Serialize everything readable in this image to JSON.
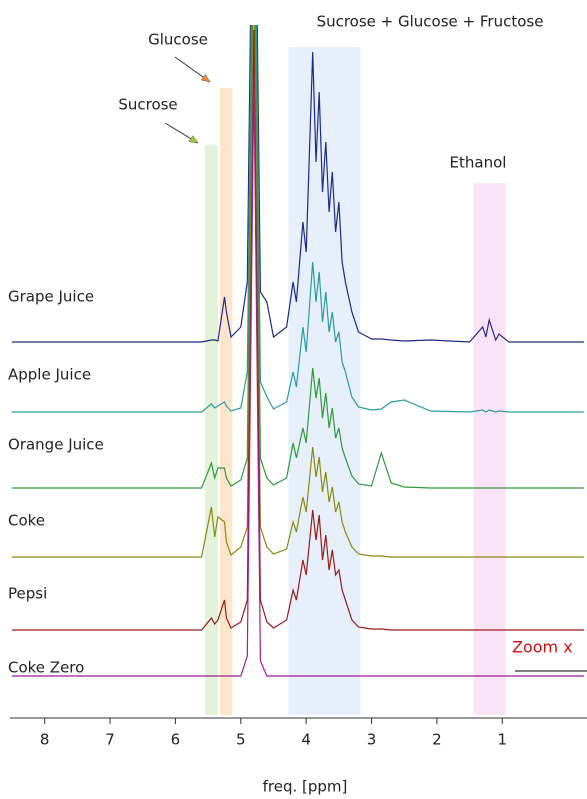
{
  "chart_data": {
    "type": "line",
    "xlabel": "freq. [ppm]",
    "xlim": [
      8.5,
      -0.25
    ],
    "xticks": [
      8,
      7,
      6,
      5,
      4,
      3,
      2,
      1
    ],
    "x": [
      8.5,
      6.0,
      5.6,
      5.45,
      5.4,
      5.35,
      5.25,
      5.22,
      5.15,
      5.0,
      4.9,
      4.8,
      4.7,
      4.6,
      4.5,
      4.3,
      4.2,
      4.15,
      4.05,
      4.0,
      3.9,
      3.85,
      3.8,
      3.75,
      3.7,
      3.65,
      3.6,
      3.55,
      3.5,
      3.45,
      3.4,
      3.3,
      3.2,
      3.0,
      2.85,
      2.7,
      2.5,
      2.1,
      1.5,
      1.3,
      1.25,
      1.2,
      1.1,
      1.05,
      0.9,
      -0.25
    ],
    "series": [
      {
        "name": "Grape Juice",
        "color": "#1f2a8c",
        "values": [
          0,
          0,
          0,
          2,
          2,
          1,
          45,
          30,
          5,
          15,
          60,
          600,
          50,
          40,
          5,
          15,
          60,
          40,
          120,
          90,
          290,
          180,
          250,
          150,
          200,
          130,
          170,
          110,
          140,
          80,
          60,
          30,
          10,
          3,
          3,
          2,
          1,
          2,
          0,
          15,
          5,
          22,
          2,
          8,
          0,
          0
        ]
      },
      {
        "name": "Apple Juice",
        "color": "#2a9da0",
        "values": [
          0,
          0,
          0,
          8,
          4,
          6,
          10,
          6,
          1,
          4,
          40,
          600,
          30,
          15,
          3,
          10,
          40,
          25,
          85,
          60,
          150,
          110,
          140,
          90,
          120,
          80,
          100,
          70,
          80,
          50,
          40,
          15,
          5,
          2,
          3,
          10,
          12,
          1,
          0,
          2,
          0,
          2,
          0,
          1,
          0,
          0
        ]
      },
      {
        "name": "Orange Juice",
        "color": "#2f9a3c",
        "values": [
          0,
          0,
          0,
          25,
          10,
          20,
          20,
          10,
          2,
          8,
          30,
          600,
          30,
          10,
          3,
          10,
          45,
          30,
          60,
          45,
          120,
          90,
          110,
          70,
          95,
          60,
          80,
          50,
          60,
          40,
          30,
          12,
          4,
          2,
          35,
          5,
          1,
          0,
          0,
          0,
          0,
          0,
          0,
          0,
          0,
          0
        ]
      },
      {
        "name": "Coke",
        "color": "#8a8a10",
        "values": [
          0,
          0,
          0,
          50,
          20,
          40,
          35,
          15,
          2,
          10,
          30,
          600,
          30,
          10,
          3,
          8,
          35,
          25,
          60,
          45,
          110,
          80,
          100,
          65,
          85,
          55,
          70,
          45,
          55,
          35,
          25,
          10,
          3,
          1,
          1,
          0,
          0,
          0,
          0,
          0,
          0,
          0,
          0,
          0,
          0,
          0
        ]
      },
      {
        "name": "Pepsi",
        "color": "#9a1b1b",
        "values": [
          0,
          0,
          0,
          12,
          6,
          10,
          30,
          12,
          2,
          8,
          30,
          600,
          30,
          8,
          2,
          10,
          40,
          30,
          70,
          55,
          120,
          90,
          115,
          70,
          95,
          60,
          80,
          55,
          60,
          40,
          30,
          10,
          3,
          1,
          1,
          0,
          0,
          0,
          0,
          0,
          0,
          0,
          0,
          0,
          0,
          0
        ]
      },
      {
        "name": "Coke Zero",
        "color": "#9a1f9a",
        "values": [
          0,
          0,
          0,
          0,
          0,
          0,
          0,
          0,
          0,
          0,
          20,
          600,
          15,
          0,
          0,
          0,
          0,
          0,
          0,
          0,
          0,
          0,
          0,
          0,
          0,
          0,
          0,
          0,
          0,
          0,
          0,
          0,
          0,
          0,
          0,
          0,
          0,
          0,
          0,
          0,
          0,
          0,
          0,
          0,
          0,
          0
        ]
      }
    ],
    "regions": [
      {
        "label": "Sucrose",
        "range": [
          5.55,
          5.35
        ],
        "color": "#e3f2d9",
        "arrow_color": "#9acd32"
      },
      {
        "label": "Glucose",
        "range": [
          5.32,
          5.13
        ],
        "color": "#fde6cc",
        "arrow_color": "#f08a30"
      },
      {
        "label": "Sucrose + Glucose + Fructose",
        "range": [
          4.27,
          3.17
        ],
        "color": "#e6effa"
      },
      {
        "label": "Ethanol",
        "range": [
          1.44,
          0.95
        ],
        "color": "#fbe3f7"
      }
    ],
    "zoom_label": "Zoom x"
  }
}
